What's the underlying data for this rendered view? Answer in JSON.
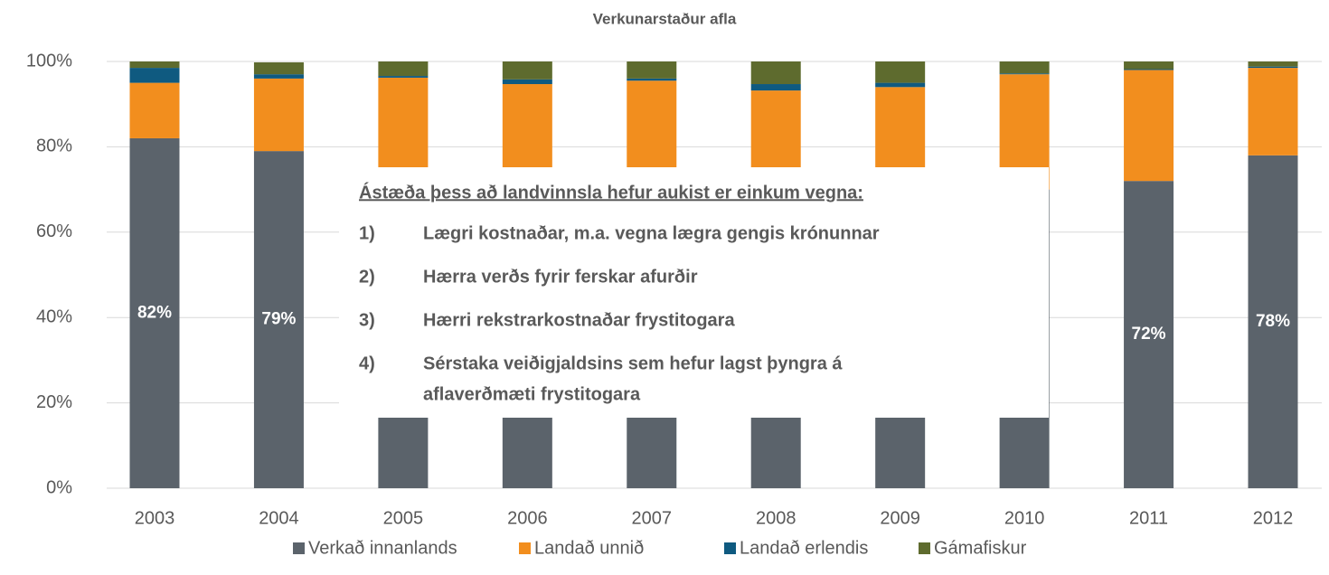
{
  "chart_data": {
    "type": "stacked_bar",
    "title": "Verkunarstaður afla",
    "categories": [
      "2003",
      "2004",
      "2005",
      "2006",
      "2007",
      "2008",
      "2009",
      "2010",
      "2011",
      "2012"
    ],
    "series": [
      {
        "name": "Verkað innanlands",
        "color": "#5b636b",
        "values": [
          82,
          79,
          72,
          70,
          68,
          66,
          68,
          70,
          72,
          78
        ],
        "value_labels": [
          "82%",
          "79%",
          null,
          null,
          null,
          null,
          null,
          null,
          "72%",
          "78%"
        ]
      },
      {
        "name": "Landað unnið",
        "color": "#f28e1e",
        "values": [
          13,
          17,
          24.2,
          24.7,
          27.5,
          27.2,
          26,
          27,
          26,
          20.5
        ]
      },
      {
        "name": "Landað erlendis",
        "color": "#0f5a80",
        "values": [
          3.5,
          1,
          0.4,
          1.1,
          0.5,
          1.5,
          1,
          0.2,
          0.2,
          0.3
        ]
      },
      {
        "name": "Gámafiskur",
        "color": "#5e6b2e",
        "values": [
          1.5,
          2.8,
          3.4,
          4.2,
          4,
          5.3,
          5,
          2.8,
          1.8,
          1.2
        ]
      }
    ],
    "ylim": [
      0,
      100
    ],
    "yticks": [
      {
        "value": 0,
        "label": "0%"
      },
      {
        "value": 20,
        "label": "20%"
      },
      {
        "value": 40,
        "label": "40%"
      },
      {
        "value": 60,
        "label": "60%"
      },
      {
        "value": 80,
        "label": "80%"
      },
      {
        "value": 100,
        "label": "100%"
      }
    ],
    "grid": true,
    "legend": "bottom",
    "annotation": {
      "title": "Ástæða þess að landvinnsla hefur aukist er einkum vegna:",
      "items": [
        {
          "number": "1)",
          "lines": [
            "Lægri kostnaðar, m.a. vegna lægra gengis krónunnar"
          ]
        },
        {
          "number": "2)",
          "lines": [
            "Hærra verðs fyrir ferskar afurðir"
          ]
        },
        {
          "number": "3)",
          "lines": [
            "Hærri rekstrarkostnaðar frystitogara"
          ]
        },
        {
          "number": "4)",
          "lines": [
            "Sérstaka veiðigjaldsins sem hefur lagst þyngra á",
            "aflaverðmæti frystitogara"
          ]
        }
      ]
    }
  }
}
